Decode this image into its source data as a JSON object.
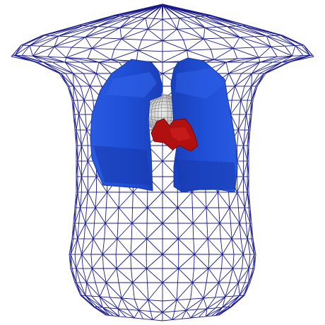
{
  "scene": {
    "background": "#ffffff",
    "torso_mesh": {
      "icon": "torso-wireframe-mesh",
      "color": "#1a1a8c"
    },
    "left_lung": {
      "icon": "lung-icon",
      "color": "#1f4fd6"
    },
    "right_lung": {
      "icon": "lung-icon",
      "color": "#1f4fd6"
    },
    "heart": {
      "icon": "heart-icon",
      "color": "#b01010"
    },
    "sphere": {
      "icon": "sphere-mesh-icon",
      "color": "#c8c8c8"
    }
  }
}
